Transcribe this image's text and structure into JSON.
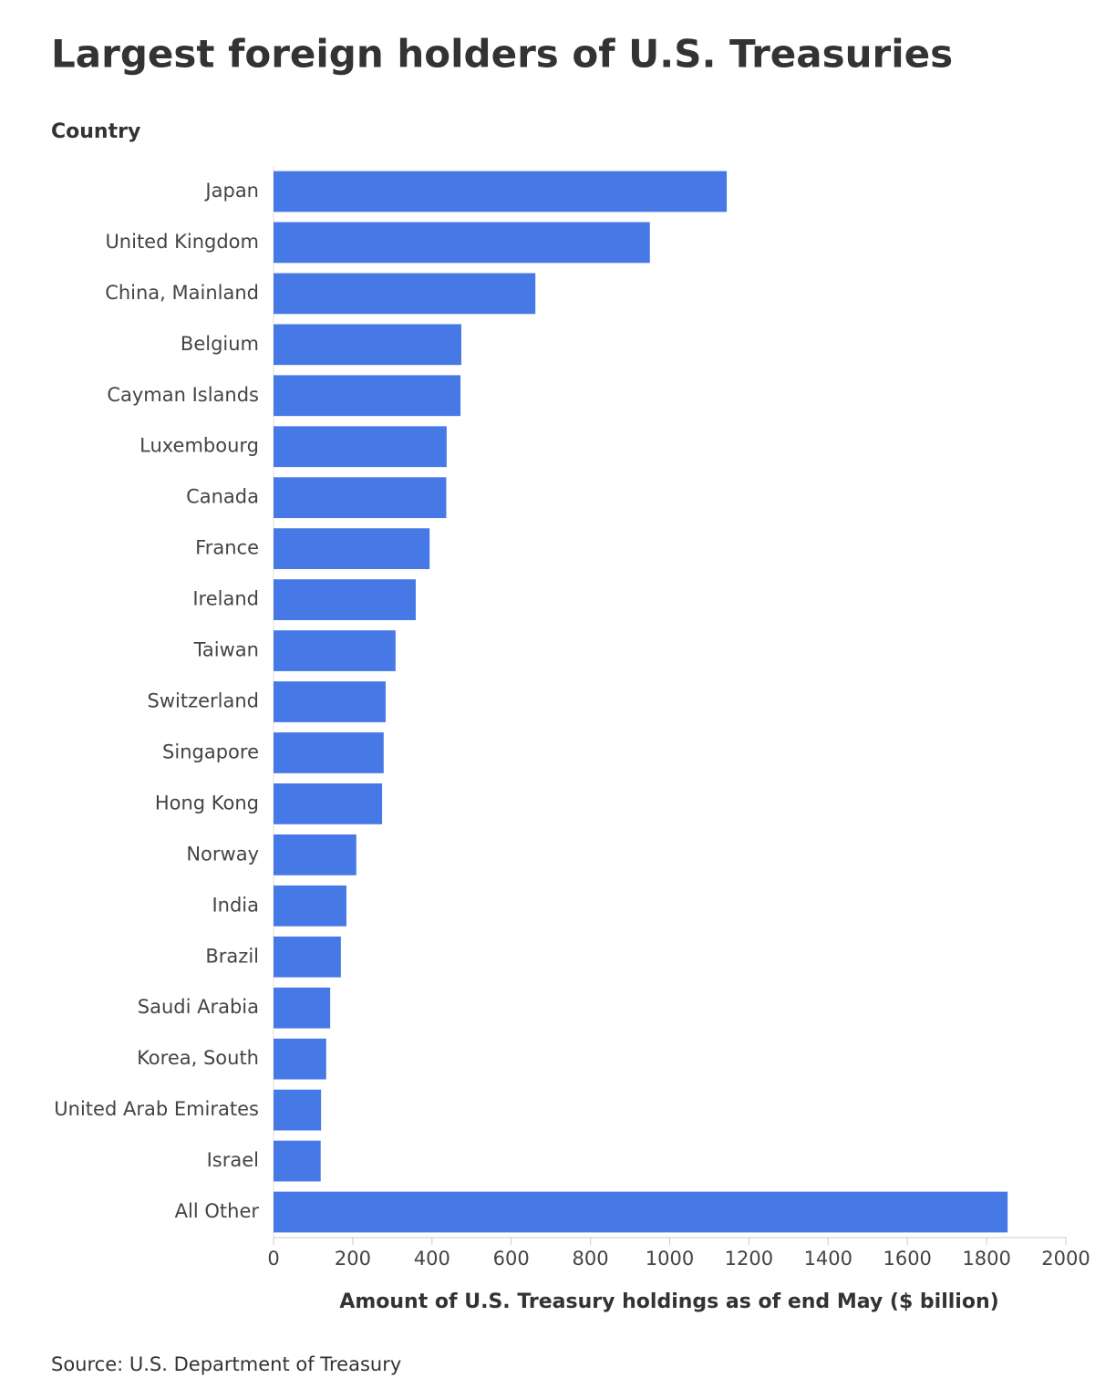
{
  "chart_data": {
    "type": "bar",
    "orientation": "horizontal",
    "title": "Largest foreign holders of U.S. Treasuries",
    "y_label": "Country",
    "x_label": "Amount of U.S. Treasury holdings as of end May ($ billion)",
    "source": "Source: U.S. Department of Treasury",
    "categories": [
      "Japan",
      "United Kingdom",
      "China, Mainland",
      "Belgium",
      "Cayman Islands",
      "Luxembourg",
      "Canada",
      "France",
      "Ireland",
      "Taiwan",
      "Switzerland",
      "Singapore",
      "Hong Kong",
      "Norway",
      "India",
      "Brazil",
      "Saudi Arabia",
      "Korea, South",
      "United Arab Emirates",
      "Israel",
      "All Other"
    ],
    "values": [
      1144,
      950,
      661,
      474,
      472,
      437,
      436,
      394,
      359,
      308,
      283,
      278,
      274,
      209,
      184,
      170,
      143,
      133,
      120,
      119,
      1853
    ],
    "color": "#4779e6",
    "xlim": [
      0,
      2000
    ],
    "xticks": [
      0,
      200,
      400,
      600,
      800,
      1000,
      1200,
      1400,
      1600,
      1800,
      2000
    ],
    "grid": false
  }
}
